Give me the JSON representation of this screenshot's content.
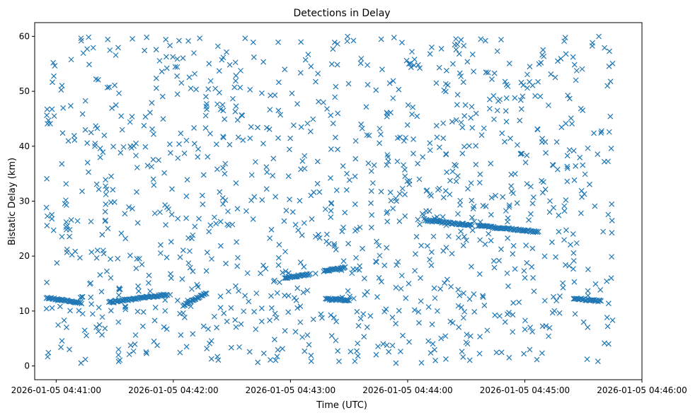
{
  "chart_data": {
    "type": "scatter",
    "title": "Detections in Delay",
    "xlabel": "Time (UTC)",
    "ylabel": "Bistatic Delay (km)",
    "marker": "x",
    "color": "#1f77b4",
    "grid": false,
    "xlim": [
      "2026-01-05 04:40:49",
      "2026-01-05 04:46:00"
    ],
    "ylim": [
      -2.5,
      62.5
    ],
    "x_ticks": [
      "2026-01-05 04:41:00",
      "2026-01-05 04:42:00",
      "2026-01-05 04:43:00",
      "2026-01-05 04:44:00",
      "2026-01-05 04:45:00",
      "2026-01-05 04:46:00"
    ],
    "y_ticks": [
      0,
      10,
      20,
      30,
      40,
      50,
      60
    ],
    "tracks": [
      {
        "start": "2026-01-05 04:40:55",
        "end": "2026-01-05 04:41:13",
        "delay_start": 12.4,
        "delay_end": 11.5
      },
      {
        "start": "2026-01-05 04:41:27",
        "end": "2026-01-05 04:41:57",
        "delay_start": 11.6,
        "delay_end": 13.0
      },
      {
        "start": "2026-01-05 04:42:05",
        "end": "2026-01-05 04:42:17",
        "delay_start": 11.0,
        "delay_end": 13.3
      },
      {
        "start": "2026-01-05 04:42:57",
        "end": "2026-01-05 04:43:10",
        "delay_start": 16.0,
        "delay_end": 16.7
      },
      {
        "start": "2026-01-05 04:43:17",
        "end": "2026-01-05 04:43:28",
        "delay_start": 17.3,
        "delay_end": 17.9
      },
      {
        "start": "2026-01-05 04:43:18",
        "end": "2026-01-05 04:43:30",
        "delay_start": 12.2,
        "delay_end": 12.0
      },
      {
        "start": "2026-01-05 04:44:09",
        "end": "2026-01-05 04:44:33",
        "delay_start": 26.5,
        "delay_end": 25.6
      },
      {
        "start": "2026-01-05 04:44:36",
        "end": "2026-01-05 04:44:57",
        "delay_start": 25.5,
        "delay_end": 24.8
      },
      {
        "start": "2026-01-05 04:44:57",
        "end": "2026-01-05 04:45:07",
        "delay_start": 24.8,
        "delay_end": 24.4
      },
      {
        "start": "2026-01-05 04:45:25",
        "end": "2026-01-05 04:45:39",
        "delay_start": 12.3,
        "delay_end": 11.8
      }
    ],
    "clutter": {
      "count": 1150,
      "start": "2026-01-05 04:40:55",
      "end": "2026-01-05 04:45:45",
      "delay_min": 0.5,
      "delay_max": 60.0
    }
  }
}
